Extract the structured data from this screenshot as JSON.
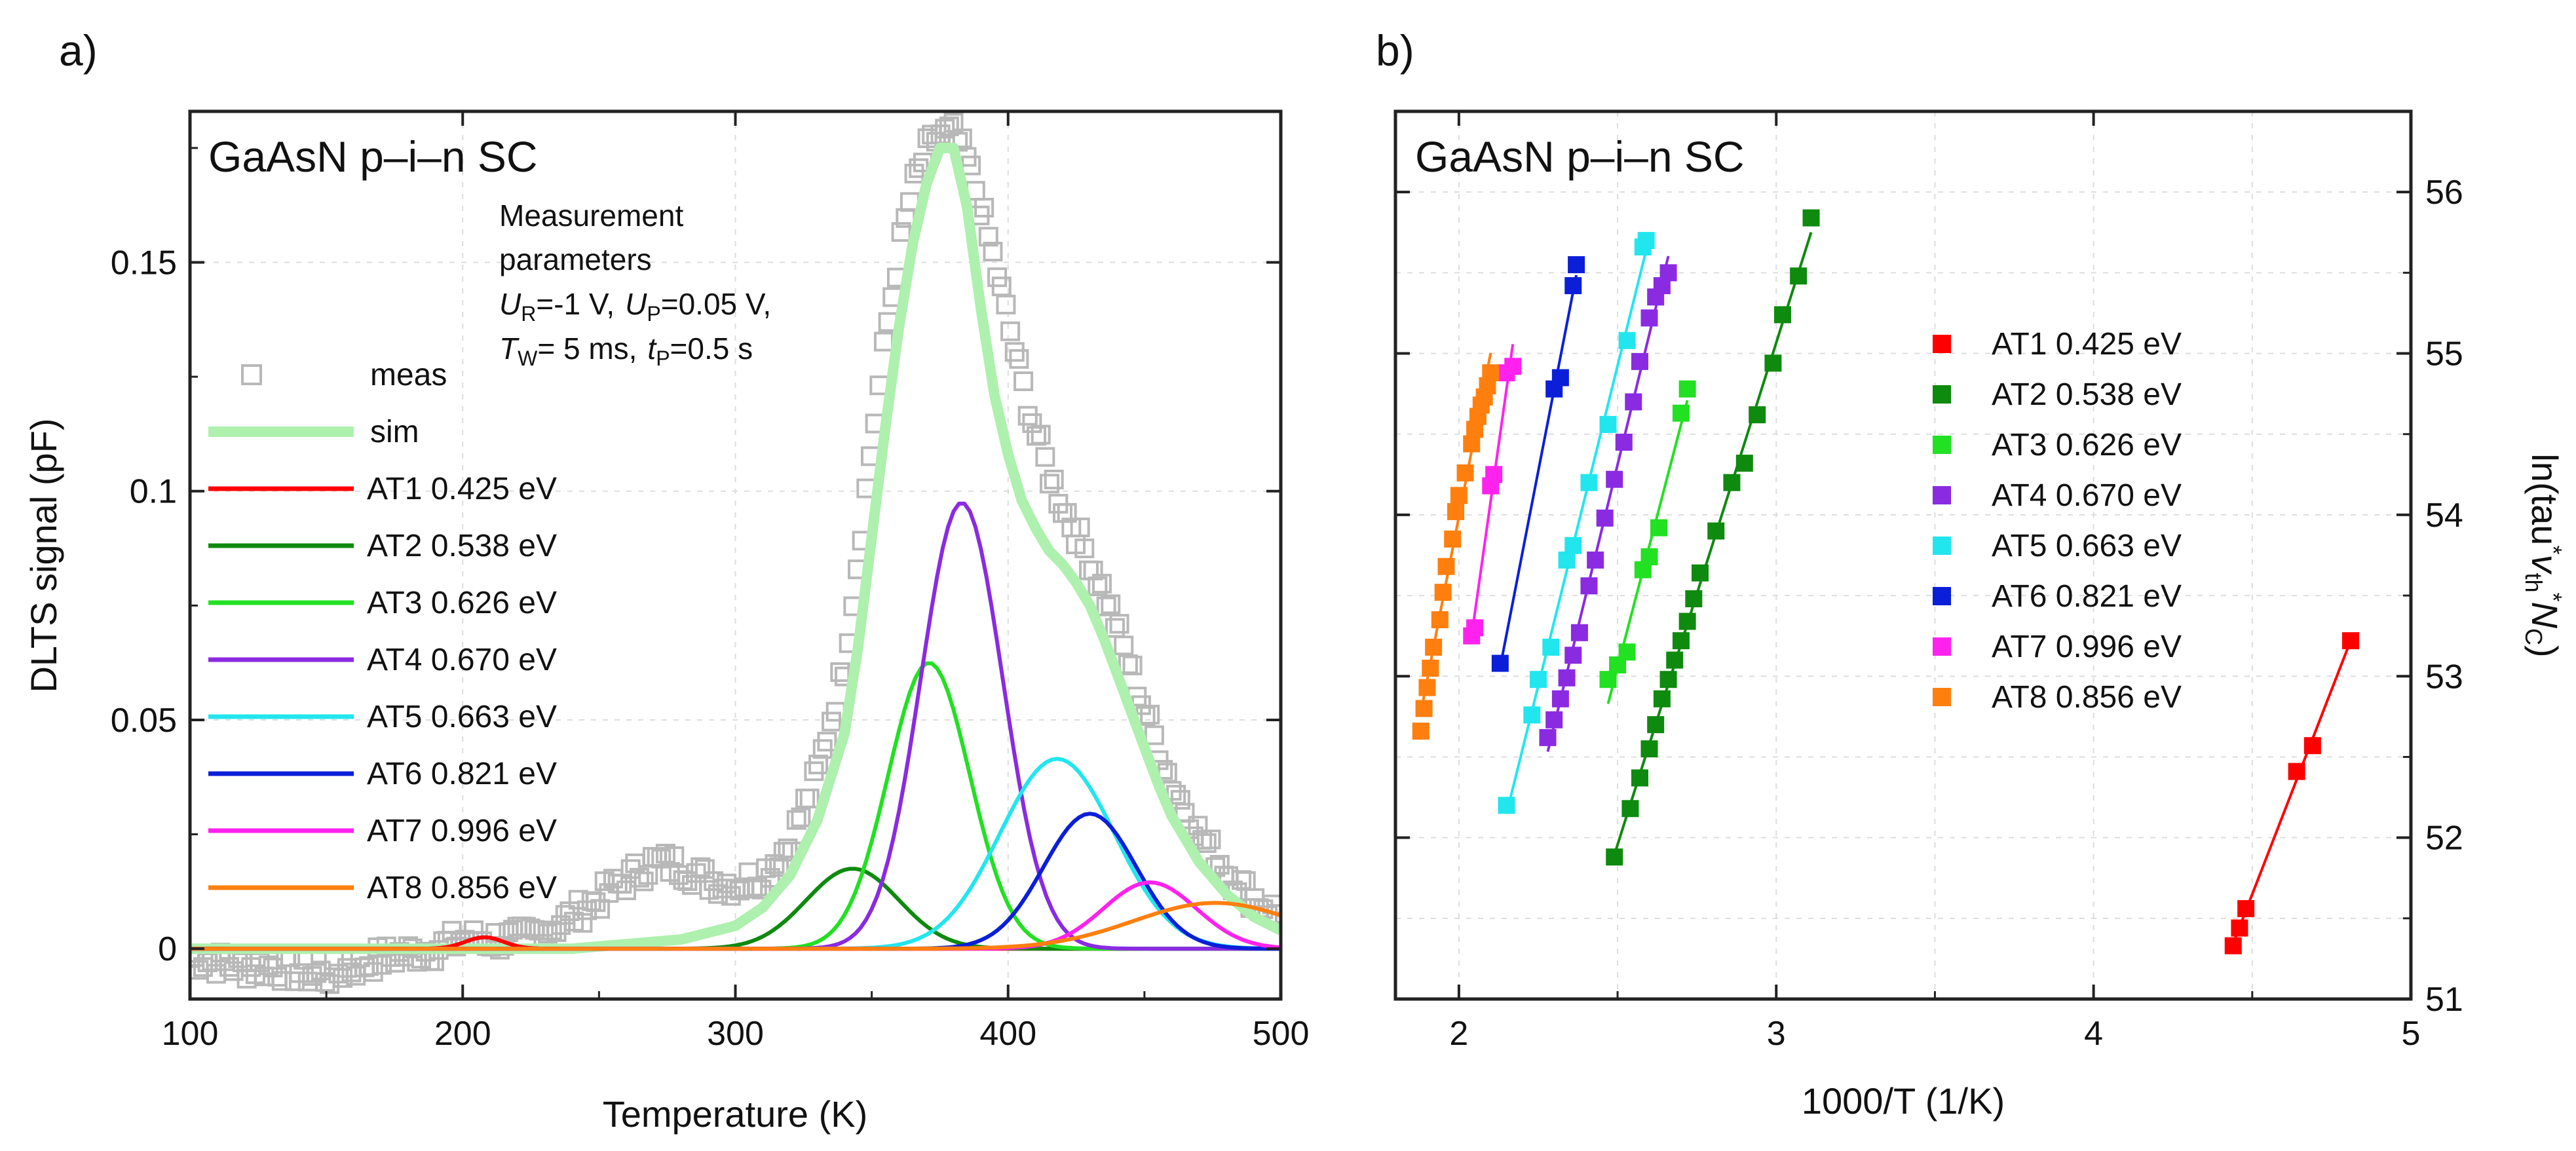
{
  "panel_labels": [
    "a)",
    "b)"
  ],
  "chart_data": [
    {
      "type": "line",
      "panel": "a)",
      "title": "GaAsN p–i–n SC",
      "xlabel": "Temperature (K)",
      "ylabel": "DLTS signal (pF)",
      "xlim": [
        100,
        500
      ],
      "ylim": [
        -0.011,
        0.183
      ],
      "xticks": [
        100,
        200,
        300,
        400,
        500
      ],
      "xtick_labels": [
        "100",
        "200",
        "300",
        "400",
        "500"
      ],
      "yticks": [
        0,
        0.05,
        0.1,
        0.15
      ],
      "ytick_labels": [
        "0",
        "0.05",
        "0.1",
        "0.15"
      ],
      "annotation": {
        "line1": "Measurement",
        "line2": "parameters",
        "ur_sym": "U",
        "ur_sub": "R",
        "ur_val": "=-1 V,",
        "up_sym": "U",
        "up_sub": "P",
        "up_val": "=0.05 V,",
        "tw_sym": "T",
        "tw_sub": "W",
        "tw_val": "= 5 ms,",
        "tp_sym": "t",
        "tp_sub": "P",
        "tp_val": "=0.5 s"
      },
      "legend": [
        "meas",
        "sim",
        "AT1 0.425 eV",
        "AT2 0.538 eV",
        "AT3 0.626 eV",
        "AT4 0.670 eV",
        "AT5 0.663 eV",
        "AT6 0.821 eV",
        "AT7 0.996 eV",
        "AT8 0.856 eV"
      ],
      "meas": {
        "name": "meas",
        "color": "#b8b8b8",
        "x": [
          100,
          110,
          120,
          130,
          140,
          150,
          160,
          170,
          180,
          190,
          200,
          210,
          220,
          230,
          240,
          250,
          260,
          270,
          280,
          290,
          300,
          310,
          320,
          330,
          340,
          345,
          350,
          355,
          360,
          365,
          370,
          375,
          380,
          385,
          390,
          395,
          400,
          405,
          410,
          415,
          420,
          425,
          430,
          435,
          440,
          445,
          450,
          455,
          460,
          470,
          480,
          490,
          500
        ],
        "y": [
          -0.002,
          -0.003,
          -0.004,
          -0.004,
          -0.005,
          -0.006,
          -0.004,
          -0.002,
          -0.001,
          0.0,
          0.002,
          0.002,
          0.002,
          0.004,
          0.007,
          0.011,
          0.015,
          0.019,
          0.018,
          0.015,
          0.014,
          0.016,
          0.023,
          0.038,
          0.062,
          0.085,
          0.11,
          0.133,
          0.152,
          0.166,
          0.174,
          0.178,
          0.178,
          0.172,
          0.162,
          0.15,
          0.137,
          0.124,
          0.113,
          0.104,
          0.097,
          0.091,
          0.085,
          0.078,
          0.07,
          0.061,
          0.052,
          0.044,
          0.036,
          0.025,
          0.017,
          0.011,
          0.007
        ]
      },
      "series": [
        {
          "name": "sim",
          "color": "#aef0ae",
          "width": 16,
          "x": [
            100,
            240,
            260,
            280,
            300,
            310,
            320,
            330,
            340,
            345,
            350,
            355,
            360,
            365,
            370,
            375,
            380,
            385,
            390,
            395,
            400,
            405,
            410,
            415,
            420,
            425,
            430,
            435,
            440,
            445,
            450,
            455,
            460,
            470,
            480,
            490,
            500
          ],
          "y": [
            0,
            0.0,
            0.001,
            0.002,
            0.005,
            0.009,
            0.016,
            0.028,
            0.047,
            0.066,
            0.09,
            0.114,
            0.136,
            0.154,
            0.167,
            0.175,
            0.175,
            0.162,
            0.14,
            0.121,
            0.108,
            0.098,
            0.092,
            0.087,
            0.084,
            0.08,
            0.075,
            0.068,
            0.06,
            0.052,
            0.044,
            0.036,
            0.029,
            0.019,
            0.012,
            0.007,
            0.004
          ]
        },
        {
          "name": "AT1 0.425 eV",
          "color": "#ff0000",
          "peak": 208,
          "amp": 0.0025,
          "sigma": 7
        },
        {
          "name": "AT2 0.538 eV",
          "color": "#0e8a0e",
          "peak": 343,
          "amp": 0.0175,
          "sigma": 17
        },
        {
          "name": "AT3 0.626 eV",
          "color": "#22e022",
          "peak": 371,
          "amp": 0.0625,
          "sigma": 15
        },
        {
          "name": "AT4 0.670 eV",
          "color": "#8a2be2",
          "peak": 383,
          "amp": 0.0975,
          "sigma": 15
        },
        {
          "name": "AT5 0.663 eV",
          "color": "#22e6ee",
          "peak": 418,
          "amp": 0.0415,
          "sigma": 21
        },
        {
          "name": "AT6 0.821 eV",
          "color": "#0b1fd8",
          "peak": 430,
          "amp": 0.0295,
          "sigma": 17
        },
        {
          "name": "AT7 0.996 eV",
          "color": "#ff22ee",
          "peak": 452,
          "amp": 0.0145,
          "sigma": 17
        },
        {
          "name": "AT8 0.856 eV",
          "color": "#ff7f0e",
          "peak": 476,
          "amp": 0.01,
          "sigma": 30
        }
      ]
    },
    {
      "type": "scatter",
      "panel": "b)",
      "title": "GaAsN p–i–n SC",
      "xlabel": "1000/T (1/K)",
      "ylabel": "ln(tau*vth*NC)",
      "ylabel_parts": {
        "prefix": "ln(tau",
        "star1": "*",
        "v": "v",
        "vsub": "th",
        "star2": "*",
        "n": "N",
        "nsub": "C",
        "suffix": ")"
      },
      "xlim": [
        1.8,
        5
      ],
      "ylim": [
        51,
        56.5
      ],
      "xticks": [
        2,
        3,
        4,
        5
      ],
      "xtick_labels": [
        "2",
        "3",
        "4",
        "5"
      ],
      "yticks": [
        51,
        52,
        53,
        54,
        55,
        56
      ],
      "ytick_labels": [
        "51",
        "52",
        "53",
        "54",
        "55",
        "56"
      ],
      "legend": [
        "AT1  0.425 eV",
        "AT2  0.538 eV",
        "AT3  0.626 eV",
        "AT4  0.670 eV",
        "AT5  0.663 eV",
        "AT6  0.821 eV",
        "AT7  0.996 eV",
        "AT8  0.856 eV"
      ],
      "series": [
        {
          "name": "AT1  0.425 eV",
          "color": "#ff0000",
          "x": [
            4.44,
            4.46,
            4.48,
            4.64,
            4.69,
            4.81
          ],
          "y": [
            51.33,
            51.44,
            51.56,
            52.41,
            52.57,
            53.22
          ]
        },
        {
          "name": "AT2  0.538 eV",
          "color": "#0e8a0e",
          "x": [
            2.49,
            2.54,
            2.57,
            2.6,
            2.62,
            2.64,
            2.66,
            2.68,
            2.7,
            2.72,
            2.74,
            2.76,
            2.81,
            2.86,
            2.9,
            2.94,
            2.99,
            3.02,
            3.07,
            3.11
          ],
          "y": [
            51.88,
            52.18,
            52.37,
            52.55,
            52.7,
            52.86,
            52.98,
            53.1,
            53.22,
            53.34,
            53.48,
            53.64,
            53.9,
            54.2,
            54.32,
            54.62,
            54.94,
            55.24,
            55.48,
            55.84
          ]
        },
        {
          "name": "AT3  0.626 eV",
          "color": "#22e022",
          "x": [
            2.47,
            2.5,
            2.53,
            2.58,
            2.6,
            2.63,
            2.7,
            2.72
          ],
          "y": [
            52.98,
            53.07,
            53.15,
            53.66,
            53.74,
            53.92,
            54.63,
            54.78
          ]
        },
        {
          "name": "AT4  0.670 eV",
          "color": "#8a2be2",
          "x": [
            2.28,
            2.3,
            2.32,
            2.34,
            2.36,
            2.38,
            2.41,
            2.43,
            2.46,
            2.49,
            2.52,
            2.55,
            2.57,
            2.6,
            2.62,
            2.64,
            2.66
          ],
          "y": [
            52.62,
            52.73,
            52.86,
            52.99,
            53.13,
            53.27,
            53.56,
            53.72,
            53.98,
            54.22,
            54.45,
            54.7,
            54.95,
            55.22,
            55.35,
            55.42,
            55.5
          ]
        },
        {
          "name": "AT5  0.663 eV",
          "color": "#22e6ee",
          "x": [
            2.15,
            2.23,
            2.25,
            2.29,
            2.34,
            2.36,
            2.41,
            2.47,
            2.53,
            2.58,
            2.59
          ],
          "y": [
            52.2,
            52.76,
            52.98,
            53.18,
            53.72,
            53.81,
            54.2,
            54.56,
            55.08,
            55.66,
            55.7
          ]
        },
        {
          "name": "AT6  0.821 eV",
          "color": "#0b1fd8",
          "x": [
            2.13,
            2.3,
            2.32,
            2.36,
            2.37
          ],
          "y": [
            53.08,
            54.78,
            54.85,
            55.42,
            55.55
          ]
        },
        {
          "name": "AT7  0.996 eV",
          "color": "#ff22ee",
          "x": [
            2.04,
            2.05,
            2.1,
            2.11,
            2.15,
            2.17
          ],
          "y": [
            53.25,
            53.3,
            54.18,
            54.25,
            54.88,
            54.92
          ]
        },
        {
          "name": "AT8  0.856 eV",
          "color": "#ff7f0e",
          "x": [
            1.88,
            1.89,
            1.9,
            1.91,
            1.92,
            1.94,
            1.95,
            1.96,
            1.98,
            1.99,
            2.0,
            2.02,
            2.04,
            2.05,
            2.06,
            2.07,
            2.08,
            2.09,
            2.1
          ],
          "y": [
            52.66,
            52.8,
            52.93,
            53.05,
            53.18,
            53.35,
            53.52,
            53.68,
            53.85,
            54.02,
            54.12,
            54.26,
            54.44,
            54.53,
            54.61,
            54.68,
            54.73,
            54.8,
            54.88
          ]
        }
      ]
    }
  ]
}
